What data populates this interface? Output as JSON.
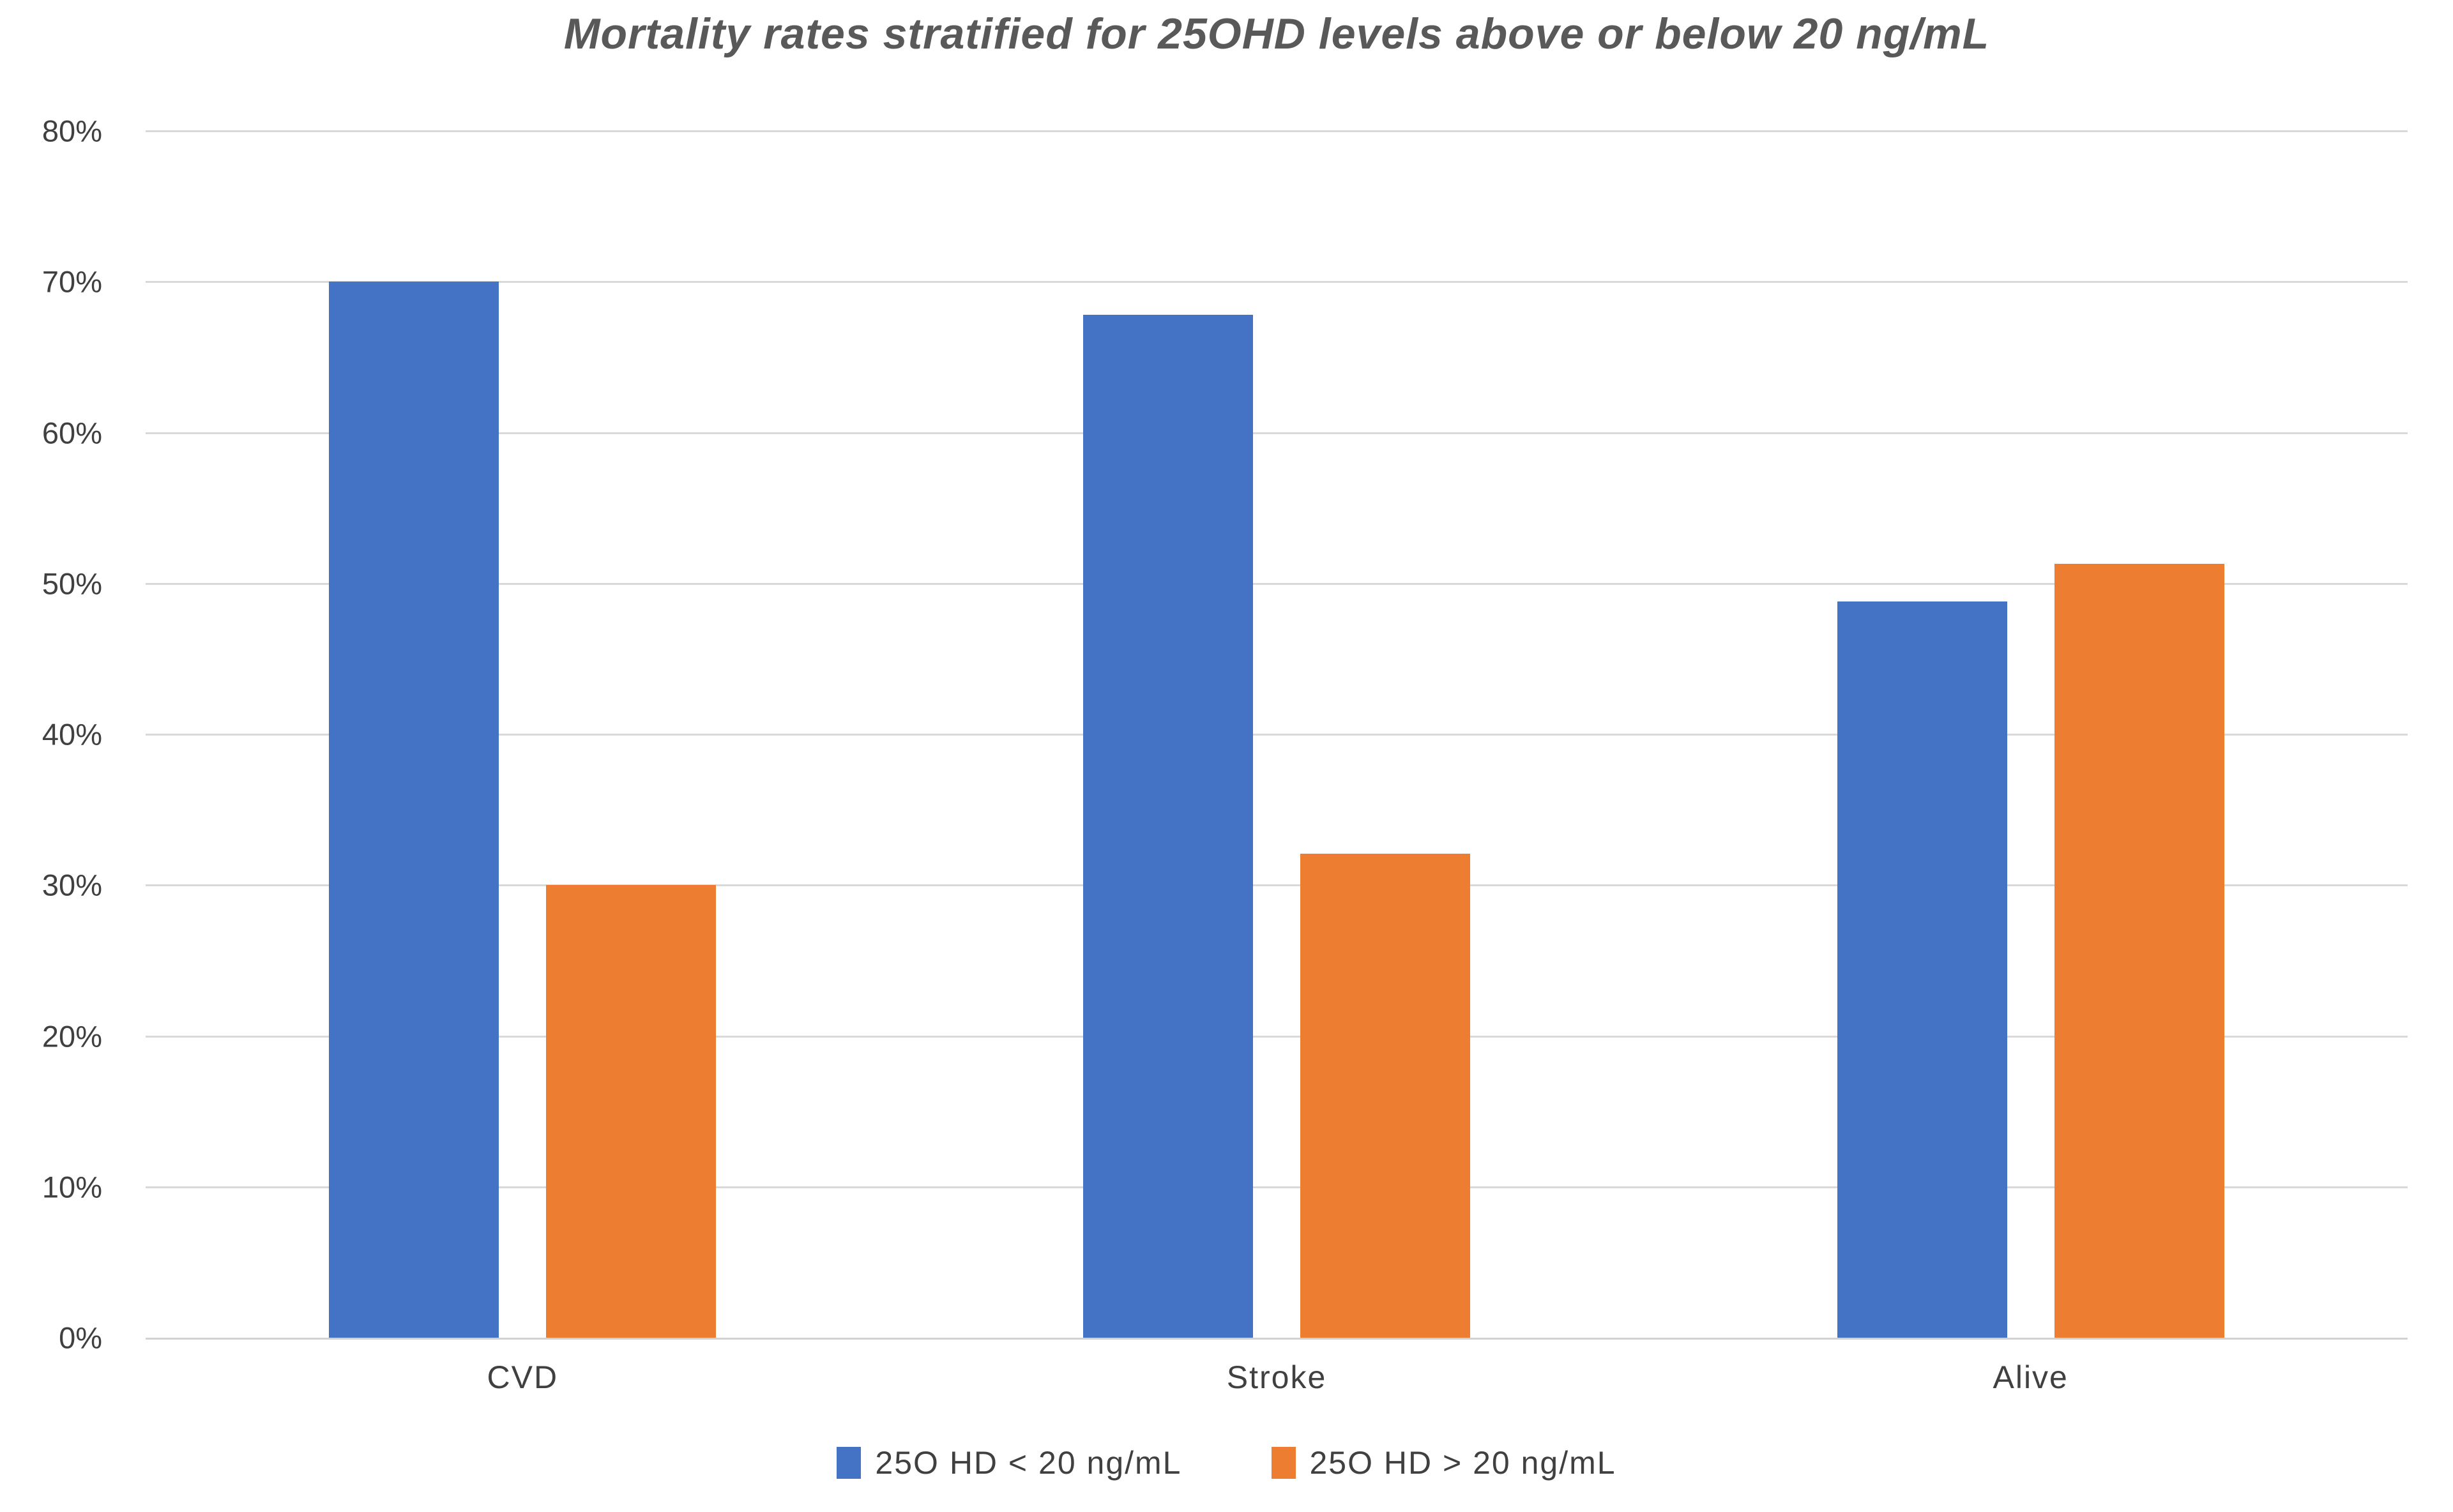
{
  "chart_data": {
    "type": "bar",
    "title": "Mortality rates stratified for 25OHD levels above or below 20 ng/mL",
    "categories": [
      "CVD",
      "Stroke",
      "Alive"
    ],
    "series": [
      {
        "name": "25O HD < 20 ng/mL",
        "color": "#4472C4",
        "values": [
          70.0,
          67.8,
          48.8
        ]
      },
      {
        "name": "25O HD > 20 ng/mL",
        "color": "#ED7D31",
        "values": [
          30.0,
          32.1,
          51.3
        ]
      }
    ],
    "xlabel": "",
    "ylabel": "",
    "ylim": [
      0,
      80
    ],
    "y_ticks": [
      {
        "value": 80,
        "label": "80%"
      },
      {
        "value": 70,
        "label": "70%"
      },
      {
        "value": 60,
        "label": "60%"
      },
      {
        "value": 50,
        "label": "50%"
      },
      {
        "value": 40,
        "label": "40%"
      },
      {
        "value": 30,
        "label": "30%"
      },
      {
        "value": 20,
        "label": "20%"
      },
      {
        "value": 10,
        "label": "10%"
      },
      {
        "value": 0,
        "label": "0%"
      }
    ],
    "grid": true,
    "legend_position": "bottom",
    "colors": {
      "series_blue": "#4472C4",
      "series_orange": "#ED7D31",
      "gridline": "#D9D9D9",
      "axis_line": "#D2D2D2",
      "tick_text": "#404040",
      "title_text": "#595959"
    }
  }
}
